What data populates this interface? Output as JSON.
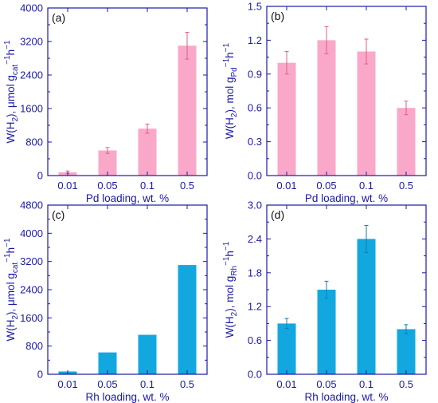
{
  "chart_data": [
    {
      "type": "bar",
      "panel_label": "(a)",
      "categories": [
        "0.01",
        "0.05",
        "0.1",
        "0.5"
      ],
      "values": [
        80,
        600,
        1120,
        3100
      ],
      "errors": [
        30,
        70,
        110,
        320
      ],
      "xlabel": "Pd loading, wt. %",
      "ylabel_main": "W(H",
      "ylabel_sub1": "2",
      "ylabel_mid": "), μmol g",
      "ylabel_sub2": "cat",
      "ylabel_sup": "−1",
      "ylabel_tail": "h",
      "ylabel_sup2": "−1",
      "ylim": [
        0,
        4000
      ],
      "yticks": [
        "0",
        "800",
        "1600",
        "2400",
        "3200",
        "4000"
      ],
      "color": "#f9a8c9",
      "error_color": "#e0607e"
    },
    {
      "type": "bar",
      "panel_label": "(b)",
      "categories": [
        "0.01",
        "0.05",
        "0.1",
        "0.5"
      ],
      "values": [
        1.0,
        1.2,
        1.1,
        0.6
      ],
      "errors": [
        0.1,
        0.12,
        0.11,
        0.06
      ],
      "xlabel": "Pd loading, wt. %",
      "ylabel_main": "W(H",
      "ylabel_sub1": "2",
      "ylabel_mid": "), mol g",
      "ylabel_sub2": "Pd",
      "ylabel_sup": "−1",
      "ylabel_tail": "h",
      "ylabel_sup2": "−1",
      "ylim": [
        0,
        1.5
      ],
      "yticks": [
        "0.0",
        "0.3",
        "0.6",
        "0.9",
        "1.2",
        "1.5"
      ],
      "color": "#f9a8c9",
      "error_color": "#e0607e"
    },
    {
      "type": "bar",
      "panel_label": "(c)",
      "categories": [
        "0.01",
        "0.05",
        "0.1",
        "0.5"
      ],
      "values": [
        80,
        620,
        1120,
        3100
      ],
      "errors": [
        0,
        0,
        0,
        0
      ],
      "xlabel": "Rh loading, wt. %",
      "ylabel_main": "W(H",
      "ylabel_sub1": "2",
      "ylabel_mid": "), μmol g",
      "ylabel_sub2": "cat",
      "ylabel_sup": "−1",
      "ylabel_tail": "h",
      "ylabel_sup2": "−1",
      "ylim": [
        0,
        4800
      ],
      "yticks": [
        "0",
        "800",
        "1600",
        "2400",
        "3200",
        "4000",
        "4800"
      ],
      "color": "#12a8df",
      "error_color": "#0d7fb0"
    },
    {
      "type": "bar",
      "panel_label": "(d)",
      "categories": [
        "0.01",
        "0.05",
        "0.1",
        "0.5"
      ],
      "values": [
        0.9,
        1.5,
        2.4,
        0.8
      ],
      "errors": [
        0.09,
        0.15,
        0.24,
        0.08
      ],
      "xlabel": "Rh loading, wt. %",
      "ylabel_main": "W(H",
      "ylabel_sub1": "2",
      "ylabel_mid": "), mol g",
      "ylabel_sub2": "Rh",
      "ylabel_sup": "−1",
      "ylabel_tail": "h",
      "ylabel_sup2": "−1",
      "ylim": [
        0,
        3.0
      ],
      "yticks": [
        "0.0",
        "0.6",
        "1.2",
        "1.8",
        "2.4",
        "3.0"
      ],
      "color": "#12a8df",
      "error_color": "#0d7fb0"
    }
  ]
}
